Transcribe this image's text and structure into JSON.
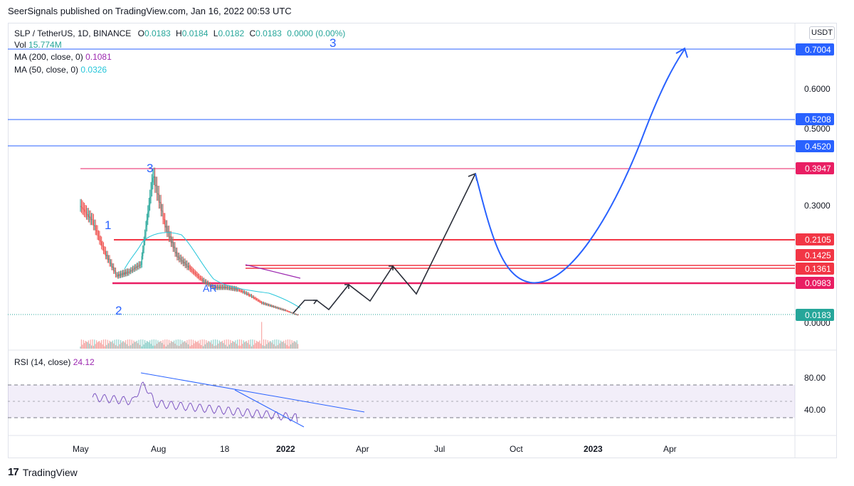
{
  "header": {
    "published": "SeerSignals published on TradingView.com, Jan 16, 2022 00:53 UTC"
  },
  "legend": {
    "symbol": "SLP / TetherUS, 1D, BINANCE",
    "o_label": "O",
    "o": "0.0183",
    "h_label": "H",
    "h": "0.0184",
    "l_label": "L",
    "l": "0.0182",
    "c_label": "C",
    "c": "0.0183",
    "change": "0.0000 (0.00%)",
    "vol_label": "Vol",
    "vol": "15.774M",
    "ma200_label": "MA (200, close, 0)",
    "ma200": "0.1081",
    "ma50_label": "MA (50, close, 0)",
    "ma50": "0.0326",
    "rsi_label": "RSI (14, close)",
    "rsi": "24.12"
  },
  "currency_button": "USDT",
  "footer": {
    "brand": "TradingView"
  },
  "colors": {
    "up": "#26a69a",
    "down": "#ef5350",
    "blue": "#2962ff",
    "pink": "#e91e63",
    "red": "#f23645",
    "rsi": "#7e57c2"
  },
  "chart_data": [
    {
      "type": "candlestick",
      "title": "SLP / TetherUS, 1D, BINANCE",
      "y_ticks": [
        "0.6000",
        "0.5000",
        "0.3000",
        "0.0000"
      ],
      "x_ticks": [
        "May",
        "Aug",
        "18",
        "2022",
        "Apr",
        "Jul",
        "Oct",
        "2023",
        "Apr"
      ],
      "price_labels": [
        {
          "value": "0.7004",
          "color": "#2962ff"
        },
        {
          "value": "0.5208",
          "color": "#2962ff"
        },
        {
          "value": "0.4520",
          "color": "#2962ff"
        },
        {
          "value": "0.3947",
          "color": "#e91e63"
        },
        {
          "value": "0.2105",
          "color": "#f23645"
        },
        {
          "value": "0.1425",
          "color": "#f23645"
        },
        {
          "value": "0.1361",
          "color": "#f23645"
        },
        {
          "value": "0.0983",
          "color": "#e91e63"
        },
        {
          "value": "0.0183",
          "color": "#26a69a"
        }
      ],
      "annotations": [
        "1",
        "2",
        "3",
        "3",
        "AR"
      ],
      "series_approx": [
        {
          "name": "close_approx",
          "values": [
            0.3,
            0.26,
            0.18,
            0.12,
            0.13,
            0.15,
            0.38,
            0.25,
            0.17,
            0.14,
            0.11,
            0.09,
            0.09,
            0.085,
            0.07,
            0.05,
            0.04,
            0.03,
            0.0183
          ]
        }
      ]
    },
    {
      "type": "line",
      "title": "RSI (14, close)",
      "y_ticks": [
        "80.00",
        "40.00"
      ],
      "bands": [
        70,
        50,
        30
      ],
      "last": 24.12
    }
  ]
}
